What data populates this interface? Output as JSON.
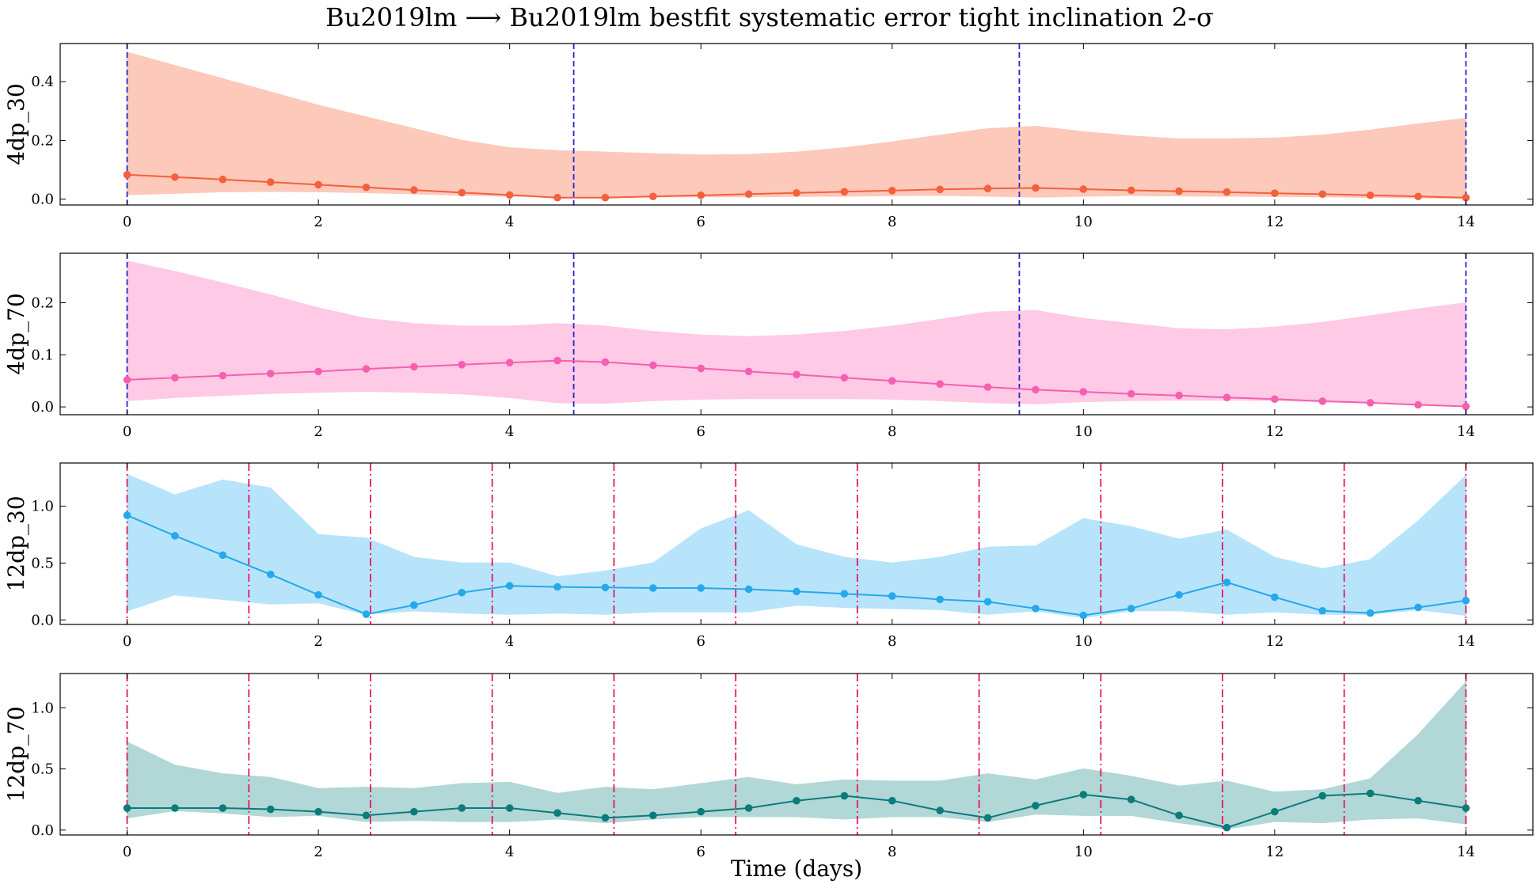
{
  "figure": {
    "title": "Bu2019lm ⟶ Bu2019lm bestfit systematic error tight inclination 2-σ",
    "xlabel": "Time (days)"
  },
  "chart_data": [
    {
      "type": "line",
      "ylabel": "4dp_30",
      "xlim": [
        -0.7,
        14.7
      ],
      "ylim": [
        -0.02,
        0.53
      ],
      "xticks": [
        "0",
        "2",
        "4",
        "6",
        "8",
        "10",
        "12",
        "14"
      ],
      "yticks": [
        "0.0",
        "0.2",
        "0.4"
      ],
      "ytick_values": [
        0.0,
        0.2,
        0.4
      ],
      "color": "#f4603c",
      "band_color": "#fcc9bb",
      "vlines": [
        0,
        4.67,
        9.33,
        14
      ],
      "vline_color": "#2a24d8",
      "vline_style": "dashed",
      "x": [
        0,
        0.5,
        1,
        1.5,
        2,
        2.5,
        3,
        3.5,
        4,
        4.5,
        5,
        5.5,
        6,
        6.5,
        7,
        7.5,
        8,
        8.5,
        9,
        9.5,
        10,
        10.5,
        11,
        11.5,
        12,
        12.5,
        13,
        13.5,
        14
      ],
      "y": [
        0.083,
        0.075,
        0.067,
        0.058,
        0.049,
        0.04,
        0.031,
        0.022,
        0.014,
        0.005,
        0.005,
        0.009,
        0.013,
        0.017,
        0.021,
        0.025,
        0.029,
        0.033,
        0.036,
        0.038,
        0.034,
        0.03,
        0.027,
        0.024,
        0.02,
        0.017,
        0.013,
        0.009,
        0.005
      ],
      "y_upper": [
        0.5,
        0.455,
        0.41,
        0.365,
        0.32,
        0.28,
        0.24,
        0.2,
        0.175,
        0.165,
        0.16,
        0.155,
        0.15,
        0.152,
        0.16,
        0.175,
        0.195,
        0.218,
        0.24,
        0.248,
        0.23,
        0.215,
        0.205,
        0.205,
        0.208,
        0.218,
        0.235,
        0.256,
        0.275
      ],
      "y_lower": [
        0.015,
        0.02,
        0.025,
        0.026,
        0.025,
        0.022,
        0.018,
        0.013,
        0.01,
        0.008,
        0.008,
        0.008,
        0.008,
        0.008,
        0.009,
        0.01,
        0.012,
        0.013,
        0.01,
        0.007,
        0.01,
        0.012,
        0.011,
        0.01,
        0.009,
        0.008,
        0.006,
        0.004,
        0.003
      ]
    },
    {
      "type": "line",
      "ylabel": "4dp_70",
      "xlim": [
        -0.7,
        14.7
      ],
      "ylim": [
        -0.015,
        0.295
      ],
      "xticks": [
        "0",
        "2",
        "4",
        "6",
        "8",
        "10",
        "12",
        "14"
      ],
      "yticks": [
        "0.0",
        "0.1",
        "0.2"
      ],
      "ytick_values": [
        0.0,
        0.1,
        0.2
      ],
      "color": "#f65fb0",
      "band_color": "#fecae5",
      "vlines": [
        0,
        4.67,
        9.33,
        14
      ],
      "vline_color": "#2a24d8",
      "vline_style": "dashed",
      "x": [
        0,
        0.5,
        1,
        1.5,
        2,
        2.5,
        3,
        3.5,
        4,
        4.5,
        5,
        5.5,
        6,
        6.5,
        7,
        7.5,
        8,
        8.5,
        9,
        9.5,
        10,
        10.5,
        11,
        11.5,
        12,
        12.5,
        13,
        13.5,
        14
      ],
      "y": [
        0.052,
        0.056,
        0.06,
        0.064,
        0.068,
        0.073,
        0.077,
        0.081,
        0.085,
        0.089,
        0.086,
        0.08,
        0.074,
        0.068,
        0.062,
        0.056,
        0.05,
        0.044,
        0.038,
        0.033,
        0.029,
        0.025,
        0.022,
        0.018,
        0.015,
        0.011,
        0.008,
        0.004,
        0.001
      ],
      "y_upper": [
        0.28,
        0.26,
        0.238,
        0.215,
        0.19,
        0.17,
        0.16,
        0.155,
        0.155,
        0.16,
        0.155,
        0.145,
        0.138,
        0.135,
        0.138,
        0.145,
        0.155,
        0.168,
        0.182,
        0.185,
        0.17,
        0.16,
        0.15,
        0.148,
        0.153,
        0.162,
        0.175,
        0.188,
        0.2
      ],
      "y_lower": [
        0.012,
        0.018,
        0.022,
        0.026,
        0.028,
        0.03,
        0.028,
        0.025,
        0.018,
        0.008,
        0.007,
        0.012,
        0.015,
        0.016,
        0.016,
        0.016,
        0.015,
        0.012,
        0.008,
        0.006,
        0.01,
        0.012,
        0.013,
        0.013,
        0.012,
        0.01,
        0.008,
        0.005,
        0.002
      ]
    },
    {
      "type": "line",
      "ylabel": "12dp_30",
      "xlim": [
        -0.7,
        14.7
      ],
      "ylim": [
        -0.04,
        1.38
      ],
      "xticks": [
        "0",
        "2",
        "4",
        "6",
        "8",
        "10",
        "12",
        "14"
      ],
      "yticks": [
        "0.0",
        "0.5",
        "1.0"
      ],
      "ytick_values": [
        0.0,
        0.5,
        1.0
      ],
      "color": "#25a9ea",
      "band_color": "#b8e4fb",
      "vlines": [
        0,
        1.273,
        2.545,
        3.818,
        5.091,
        6.364,
        7.636,
        8.909,
        10.182,
        11.455,
        12.727,
        14
      ],
      "vline_color": "#e8175d",
      "vline_style": "dashdot",
      "x": [
        0,
        0.5,
        1,
        1.5,
        2,
        2.5,
        3,
        3.5,
        4,
        4.5,
        5,
        5.5,
        6,
        6.5,
        7,
        7.5,
        8,
        8.5,
        9,
        9.5,
        10,
        10.5,
        11,
        11.5,
        12,
        12.5,
        13,
        13.5,
        14
      ],
      "y": [
        0.92,
        0.74,
        0.57,
        0.4,
        0.22,
        0.05,
        0.13,
        0.24,
        0.3,
        0.29,
        0.285,
        0.28,
        0.28,
        0.27,
        0.25,
        0.23,
        0.21,
        0.18,
        0.16,
        0.1,
        0.04,
        0.1,
        0.22,
        0.33,
        0.2,
        0.08,
        0.06,
        0.11,
        0.17
      ],
      "y_upper": [
        1.28,
        1.1,
        1.23,
        1.16,
        0.75,
        0.72,
        0.55,
        0.5,
        0.5,
        0.38,
        0.43,
        0.5,
        0.8,
        0.96,
        0.66,
        0.55,
        0.5,
        0.55,
        0.64,
        0.65,
        0.89,
        0.82,
        0.71,
        0.79,
        0.55,
        0.45,
        0.53,
        0.87,
        1.27
      ],
      "y_lower": [
        0.08,
        0.22,
        0.18,
        0.14,
        0.15,
        0.05,
        0.08,
        0.06,
        0.05,
        0.06,
        0.05,
        0.07,
        0.07,
        0.07,
        0.13,
        0.11,
        0.1,
        0.09,
        0.05,
        0.08,
        0.02,
        0.08,
        0.08,
        0.05,
        0.07,
        0.05,
        0.05,
        0.09,
        0.04
      ]
    },
    {
      "type": "line",
      "ylabel": "12dp_70",
      "xlim": [
        -0.7,
        14.7
      ],
      "ylim": [
        -0.04,
        1.28
      ],
      "xticks": [
        "0",
        "2",
        "4",
        "6",
        "8",
        "10",
        "12",
        "14"
      ],
      "yticks": [
        "0.0",
        "0.5",
        "1.0"
      ],
      "ytick_values": [
        0.0,
        0.5,
        1.0
      ],
      "color": "#0b7b7b",
      "band_color": "#b1d8d6",
      "vlines": [
        0,
        1.273,
        2.545,
        3.818,
        5.091,
        6.364,
        7.636,
        8.909,
        10.182,
        11.455,
        12.727,
        14
      ],
      "vline_color": "#e8175d",
      "vline_style": "dashdot",
      "x": [
        0,
        0.5,
        1,
        1.5,
        2,
        2.5,
        3,
        3.5,
        4,
        4.5,
        5,
        5.5,
        6,
        6.5,
        7,
        7.5,
        8,
        8.5,
        9,
        9.5,
        10,
        10.5,
        11,
        11.5,
        12,
        12.5,
        13,
        13.5,
        14
      ],
      "y": [
        0.18,
        0.18,
        0.18,
        0.17,
        0.15,
        0.12,
        0.15,
        0.18,
        0.18,
        0.14,
        0.1,
        0.12,
        0.15,
        0.18,
        0.24,
        0.28,
        0.24,
        0.16,
        0.1,
        0.2,
        0.29,
        0.25,
        0.12,
        0.02,
        0.15,
        0.28,
        0.3,
        0.24,
        0.18
      ],
      "y_upper": [
        0.72,
        0.53,
        0.46,
        0.43,
        0.34,
        0.35,
        0.34,
        0.38,
        0.39,
        0.3,
        0.35,
        0.33,
        0.38,
        0.43,
        0.37,
        0.41,
        0.4,
        0.4,
        0.46,
        0.41,
        0.5,
        0.44,
        0.36,
        0.4,
        0.31,
        0.33,
        0.42,
        0.78,
        1.21
      ],
      "y_lower": [
        0.1,
        0.16,
        0.14,
        0.11,
        0.12,
        0.07,
        0.08,
        0.07,
        0.07,
        0.09,
        0.06,
        0.09,
        0.11,
        0.11,
        0.11,
        0.09,
        0.11,
        0.11,
        0.07,
        0.13,
        0.12,
        0.12,
        0.06,
        0.01,
        0.07,
        0.06,
        0.09,
        0.1,
        0.05
      ]
    }
  ]
}
